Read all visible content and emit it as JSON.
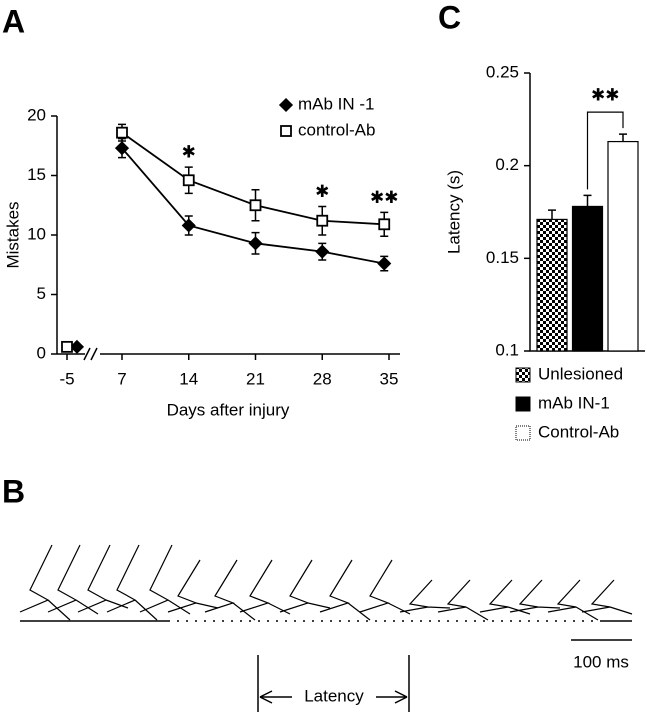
{
  "panels": {
    "a": "A",
    "b": "B",
    "c": "C"
  },
  "chart_data": [
    {
      "type": "line",
      "xlabel": "Days after injury",
      "ylabel": "Mistakes",
      "xlim": [
        -6,
        36
      ],
      "xticks": [
        -5,
        7,
        14,
        21,
        28,
        35
      ],
      "axis_break": true,
      "ylim": [
        0,
        20
      ],
      "yticks": [
        0,
        5,
        10,
        15,
        20
      ],
      "legend": "upper right",
      "series": [
        {
          "name": "mAb IN -1",
          "color": "#000000",
          "marker": "diamond",
          "x": [
            -4,
            7,
            14,
            21,
            28,
            34.5
          ],
          "values": [
            0.6,
            17.3,
            10.8,
            9.3,
            8.6,
            7.6
          ],
          "errors": [
            0,
            0.8,
            0.8,
            0.9,
            0.7,
            0.6
          ]
        },
        {
          "name": "control-Ab",
          "color": "#ffffff",
          "marker": "square",
          "x": [
            -5,
            7,
            14,
            21,
            28,
            34.5
          ],
          "values": [
            0.6,
            18.6,
            14.6,
            12.5,
            11.2,
            10.9
          ],
          "errors": [
            0,
            0.7,
            1.1,
            1.3,
            1.2,
            1.0
          ]
        }
      ],
      "significance_labels": [
        null,
        null,
        "✱",
        null,
        "✱",
        "✱✱"
      ]
    },
    {
      "type": "bar",
      "ylabel": "Latency (s)",
      "categories": [
        "Unlesioned",
        "mAb IN-1",
        "Control-Ab"
      ],
      "values": [
        0.171,
        0.178,
        0.213
      ],
      "errors": [
        0.005,
        0.006,
        0.004
      ],
      "patterns": [
        "checker",
        "solid",
        "solid"
      ],
      "colors": [
        "#000000",
        "#000000",
        "#ffffff"
      ],
      "ylim": [
        0.1,
        0.25
      ],
      "yticks": [
        0.1,
        0.15,
        0.2,
        0.25
      ],
      "significance_labels": [
        null,
        null,
        "✱✱"
      ]
    }
  ],
  "panel_b": {
    "scale_bar": "100 ms",
    "latency": "Latency"
  }
}
